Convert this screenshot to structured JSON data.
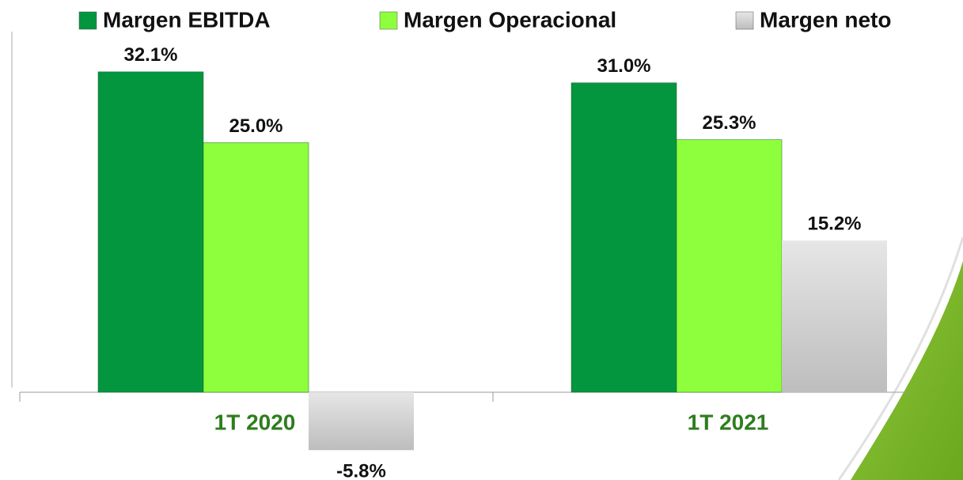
{
  "chart_data": {
    "type": "bar",
    "categories": [
      "1T 2020",
      "1T 2021"
    ],
    "series": [
      {
        "name": "Margen EBITDA",
        "color": "#03963e",
        "values": [
          32.1,
          31.0
        ],
        "value_labels": [
          "32.1%",
          "31.0%"
        ]
      },
      {
        "name": "Margen Operacional",
        "color": "#8eff3c",
        "values": [
          25.0,
          25.3
        ],
        "value_labels": [
          "25.0%",
          "25.3%"
        ]
      },
      {
        "name": "Margen neto",
        "color": "#d2d2d2",
        "values": [
          -5.8,
          15.2
        ],
        "value_labels": [
          "-5.8%",
          "15.2%"
        ]
      }
    ],
    "ylim": [
      -8,
      33
    ],
    "legend": "top"
  }
}
